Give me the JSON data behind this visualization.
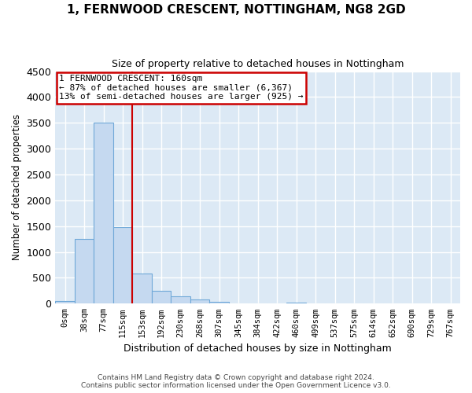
{
  "title": "1, FERNWOOD CRESCENT, NOTTINGHAM, NG8 2GD",
  "subtitle": "Size of property relative to detached houses in Nottingham",
  "xlabel": "Distribution of detached houses by size in Nottingham",
  "ylabel": "Number of detached properties",
  "bin_labels": [
    "0sqm",
    "38sqm",
    "77sqm",
    "115sqm",
    "153sqm",
    "192sqm",
    "230sqm",
    "268sqm",
    "307sqm",
    "345sqm",
    "384sqm",
    "422sqm",
    "460sqm",
    "499sqm",
    "537sqm",
    "575sqm",
    "614sqm",
    "652sqm",
    "690sqm",
    "729sqm",
    "767sqm"
  ],
  "bar_values": [
    50,
    1250,
    3500,
    1480,
    580,
    250,
    135,
    80,
    30,
    0,
    0,
    0,
    15,
    0,
    0,
    0,
    0,
    0,
    0,
    0,
    0
  ],
  "bar_color": "#c5d9f0",
  "bar_edge_color": "#6fa8d8",
  "vline_x": 3.5,
  "annotation_title": "1 FERNWOOD CRESCENT: 160sqm",
  "annotation_line1": "← 87% of detached houses are smaller (6,367)",
  "annotation_line2": "13% of semi-detached houses are larger (925) →",
  "annotation_box_color": "#ffffff",
  "annotation_border_color": "#cc0000",
  "vline_color": "#cc0000",
  "ylim": [
    0,
    4500
  ],
  "yticks": [
    0,
    500,
    1000,
    1500,
    2000,
    2500,
    3000,
    3500,
    4000,
    4500
  ],
  "background_color": "#dce9f5",
  "grid_color": "#ffffff",
  "footer_line1": "Contains HM Land Registry data © Crown copyright and database right 2024.",
  "footer_line2": "Contains public sector information licensed under the Open Government Licence v3.0."
}
